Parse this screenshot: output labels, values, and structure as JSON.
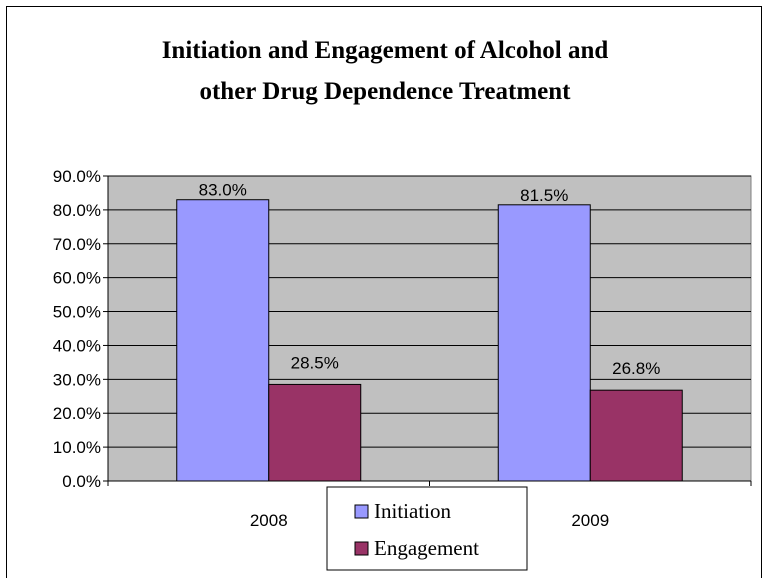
{
  "chart_data": {
    "type": "bar",
    "title_lines": [
      "Initiation and Engagement of Alcohol and",
      "other Drug Dependence Treatment"
    ],
    "categories": [
      "2008",
      "2009"
    ],
    "series": [
      {
        "name": "Initiation",
        "values": [
          83.0,
          81.5
        ],
        "labels": [
          "83.0%",
          "81.5%"
        ],
        "color": "#9999FF"
      },
      {
        "name": "Engagement",
        "values": [
          28.5,
          26.8
        ],
        "labels": [
          "28.5%",
          "26.8%"
        ],
        "color": "#993366"
      }
    ],
    "ylim": [
      0,
      90
    ],
    "yticks": [
      "0.0%",
      "10.0%",
      "20.0%",
      "30.0%",
      "40.0%",
      "50.0%",
      "60.0%",
      "70.0%",
      "80.0%",
      "90.0%"
    ],
    "plot_background": "#C0C0C0",
    "grid": true,
    "legend_position": "bottom-center"
  }
}
